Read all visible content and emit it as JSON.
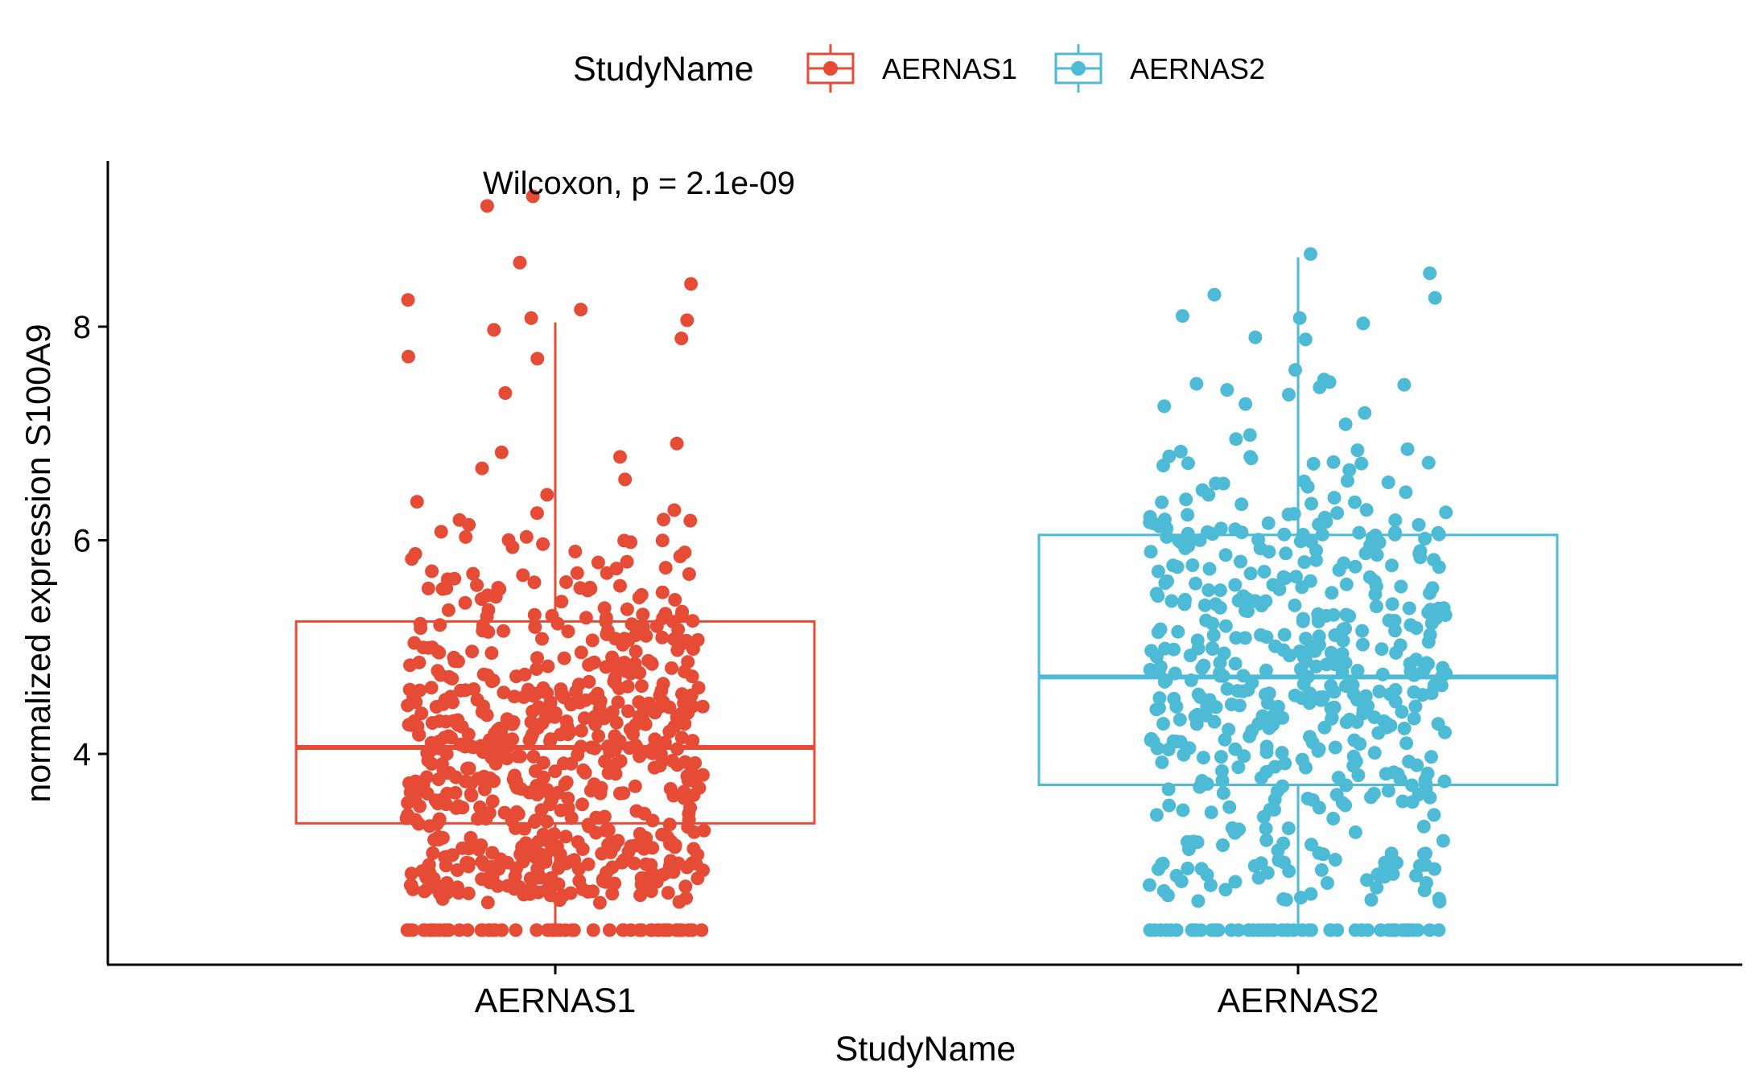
{
  "legend": {
    "title": "StudyName",
    "entries": [
      {
        "label": "AERNAS1",
        "color": "#E64B35"
      },
      {
        "label": "AERNAS2",
        "color": "#4DBBD5"
      }
    ]
  },
  "annotation": "Wilcoxon, p = 2.1e-09",
  "chart_data": {
    "type": "box-jitter",
    "xlabel": "StudyName",
    "ylabel": "normalized expression S100A9",
    "categories": [
      "AERNAS1",
      "AERNAS2"
    ],
    "yticks": [
      4,
      6,
      8
    ],
    "ylim": [
      2.2,
      9.5
    ],
    "grid": false,
    "legend_position": "top",
    "series": [
      {
        "name": "AERNAS1",
        "color": "#E64B35",
        "box": {
          "min": 2.35,
          "q1": 3.35,
          "median": 4.06,
          "q3": 5.24,
          "max": 8.04
        },
        "points_approx": 720,
        "notable_points": [
          9.22,
          9.13,
          8.6,
          8.4,
          8.25,
          8.16,
          8.08,
          8.06,
          7.97,
          7.89,
          7.72,
          7.7
        ]
      },
      {
        "name": "AERNAS2",
        "color": "#4DBBD5",
        "box": {
          "min": 2.35,
          "q1": 3.71,
          "median": 4.72,
          "q3": 6.05,
          "max": 8.65
        },
        "points_approx": 560,
        "notable_points": [
          8.68,
          8.5,
          8.3,
          8.27,
          8.1,
          8.08,
          8.03,
          7.9,
          7.88
        ]
      }
    ]
  }
}
